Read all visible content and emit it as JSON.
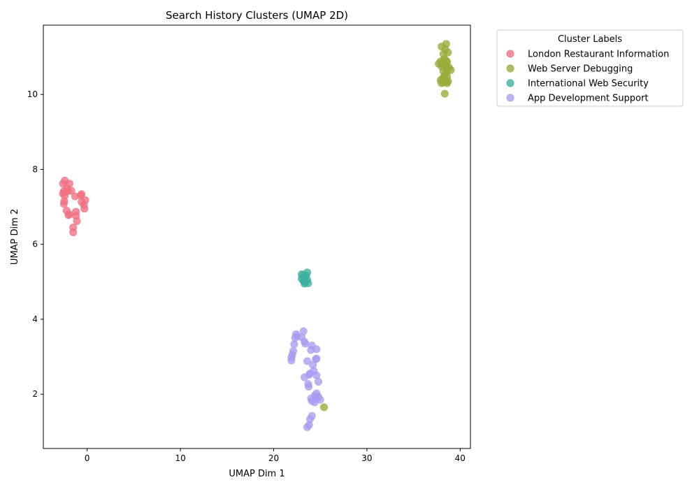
{
  "chart_data": {
    "type": "scatter",
    "title": "Search History Clusters (UMAP 2D)",
    "xlabel": "UMAP Dim 1",
    "ylabel": "UMAP Dim 2",
    "xlim": [
      -4.7,
      41.1
    ],
    "ylim": [
      0.55,
      11.85
    ],
    "xticks": [
      0,
      10,
      20,
      30,
      40
    ],
    "yticks": [
      2,
      4,
      6,
      8,
      10
    ],
    "grid": false,
    "legend": {
      "title": "Cluster Labels",
      "placement": "outside-top-right"
    },
    "series": [
      {
        "name": "London Restaurant Information",
        "color": "#f07080",
        "points": [
          [
            -2.4,
            7.7
          ],
          [
            -2.6,
            7.62
          ],
          [
            -1.9,
            7.62
          ],
          [
            -2.2,
            7.5
          ],
          [
            -1.7,
            7.43
          ],
          [
            -2.5,
            7.42
          ],
          [
            -2.1,
            7.42
          ],
          [
            -2.6,
            7.35
          ],
          [
            -0.6,
            7.34
          ],
          [
            -0.7,
            7.3
          ],
          [
            -2.4,
            7.3
          ],
          [
            -1.3,
            7.28
          ],
          [
            -0.2,
            7.18
          ],
          [
            -2.45,
            7.15
          ],
          [
            -0.6,
            7.13
          ],
          [
            -2.5,
            7.08
          ],
          [
            -0.35,
            7.05
          ],
          [
            -0.3,
            6.95
          ],
          [
            -2.2,
            6.9
          ],
          [
            -1.2,
            6.87
          ],
          [
            -1.9,
            6.8
          ],
          [
            -2.0,
            6.78
          ],
          [
            -1.2,
            6.76
          ],
          [
            -1.1,
            6.62
          ],
          [
            -1.5,
            6.45
          ],
          [
            -1.5,
            6.32
          ]
        ]
      },
      {
        "name": "Web Server Debugging",
        "color": "#9aab3a",
        "points": [
          [
            38.5,
            11.35
          ],
          [
            38.0,
            11.28
          ],
          [
            38.4,
            11.2
          ],
          [
            38.7,
            11.12
          ],
          [
            38.2,
            11.08
          ],
          [
            38.3,
            10.95
          ],
          [
            38.5,
            10.9
          ],
          [
            37.9,
            10.88
          ],
          [
            38.6,
            10.87
          ],
          [
            37.7,
            10.82
          ],
          [
            38.1,
            10.8
          ],
          [
            38.4,
            10.78
          ],
          [
            38.0,
            10.75
          ],
          [
            38.8,
            10.72
          ],
          [
            38.6,
            10.7
          ],
          [
            39.0,
            10.65
          ],
          [
            38.2,
            10.62
          ],
          [
            38.5,
            10.58
          ],
          [
            38.3,
            10.5
          ],
          [
            38.6,
            10.48
          ],
          [
            38.1,
            10.42
          ],
          [
            37.9,
            10.38
          ],
          [
            38.4,
            10.36
          ],
          [
            38.7,
            10.35
          ],
          [
            38.2,
            10.32
          ],
          [
            38.0,
            10.3
          ],
          [
            38.6,
            10.3
          ],
          [
            38.35,
            10.02
          ],
          [
            25.4,
            1.65
          ]
        ]
      },
      {
        "name": "International Web Security",
        "color": "#3eb0a0",
        "points": [
          [
            23.6,
            5.25
          ],
          [
            23.0,
            5.2
          ],
          [
            23.2,
            5.18
          ],
          [
            23.5,
            5.16
          ],
          [
            23.1,
            5.12
          ],
          [
            23.3,
            5.1
          ],
          [
            23.0,
            5.08
          ],
          [
            23.6,
            5.05
          ],
          [
            23.2,
            5.02
          ],
          [
            23.4,
            4.98
          ],
          [
            23.7,
            4.96
          ],
          [
            23.3,
            4.95
          ]
        ]
      },
      {
        "name": "App Development Support",
        "color": "#a99bf0",
        "points": [
          [
            23.2,
            3.68
          ],
          [
            22.4,
            3.6
          ],
          [
            22.5,
            3.55
          ],
          [
            23.0,
            3.52
          ],
          [
            22.3,
            3.5
          ],
          [
            23.3,
            3.4
          ],
          [
            23.4,
            3.35
          ],
          [
            22.2,
            3.33
          ],
          [
            24.1,
            3.3
          ],
          [
            24.6,
            3.2
          ],
          [
            24.0,
            3.18
          ],
          [
            22.1,
            3.15
          ],
          [
            22.0,
            3.05
          ],
          [
            21.9,
            2.98
          ],
          [
            24.6,
            2.95
          ],
          [
            24.5,
            2.93
          ],
          [
            21.9,
            2.9
          ],
          [
            23.6,
            2.88
          ],
          [
            24.2,
            2.78
          ],
          [
            24.3,
            2.62
          ],
          [
            23.9,
            2.55
          ],
          [
            23.8,
            2.52
          ],
          [
            24.6,
            2.5
          ],
          [
            23.3,
            2.45
          ],
          [
            24.8,
            2.33
          ],
          [
            23.7,
            2.27
          ],
          [
            23.75,
            2.2
          ],
          [
            24.6,
            2.02
          ],
          [
            24.4,
            1.97
          ],
          [
            24.8,
            1.93
          ],
          [
            24.5,
            1.9
          ],
          [
            24.0,
            1.88
          ],
          [
            25.0,
            1.85
          ],
          [
            24.1,
            1.82
          ],
          [
            24.4,
            1.78
          ],
          [
            24.1,
            1.42
          ],
          [
            23.9,
            1.33
          ],
          [
            23.8,
            1.18
          ],
          [
            23.6,
            1.12
          ]
        ]
      }
    ]
  }
}
